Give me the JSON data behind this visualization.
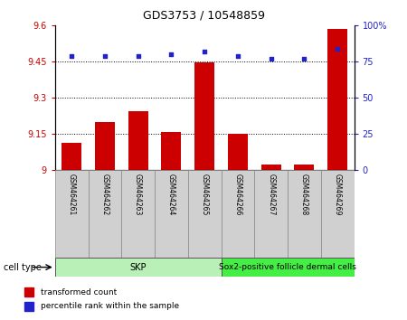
{
  "title": "GDS3753 / 10548859",
  "samples": [
    "GSM464261",
    "GSM464262",
    "GSM464263",
    "GSM464264",
    "GSM464265",
    "GSM464266",
    "GSM464267",
    "GSM464268",
    "GSM464269"
  ],
  "transformed_count": [
    9.11,
    9.2,
    9.245,
    9.155,
    9.445,
    9.15,
    9.02,
    9.02,
    9.585
  ],
  "percentile_rank": [
    79,
    79,
    79,
    80,
    82,
    79,
    77,
    77,
    84
  ],
  "ylim_left": [
    9.0,
    9.6
  ],
  "yticks_left": [
    9.0,
    9.15,
    9.3,
    9.45,
    9.6
  ],
  "ytick_labels_left": [
    "9",
    "9.15",
    "9.3",
    "9.45",
    "9.6"
  ],
  "ylim_right": [
    0,
    100
  ],
  "yticks_right": [
    0,
    25,
    50,
    75,
    100
  ],
  "ytick_labels_right": [
    "0",
    "25",
    "50",
    "75",
    "100%"
  ],
  "bar_color": "#cc0000",
  "scatter_color": "#2222cc",
  "skp_color": "#b8f0b8",
  "sox2_color": "#44ee44",
  "cell_type_label": "cell type",
  "legend_items": [
    {
      "color": "#cc0000",
      "label": "transformed count"
    },
    {
      "color": "#2222cc",
      "label": "percentile rank within the sample"
    }
  ],
  "bar_width": 0.6,
  "ylabel_left_color": "#cc0000",
  "ylabel_right_color": "#2222cc",
  "skp_group": {
    "label": "SKP",
    "start": 0,
    "end": 4
  },
  "sox2_group": {
    "label": "Sox2-positive follicle dermal cells",
    "start": 5,
    "end": 8
  }
}
